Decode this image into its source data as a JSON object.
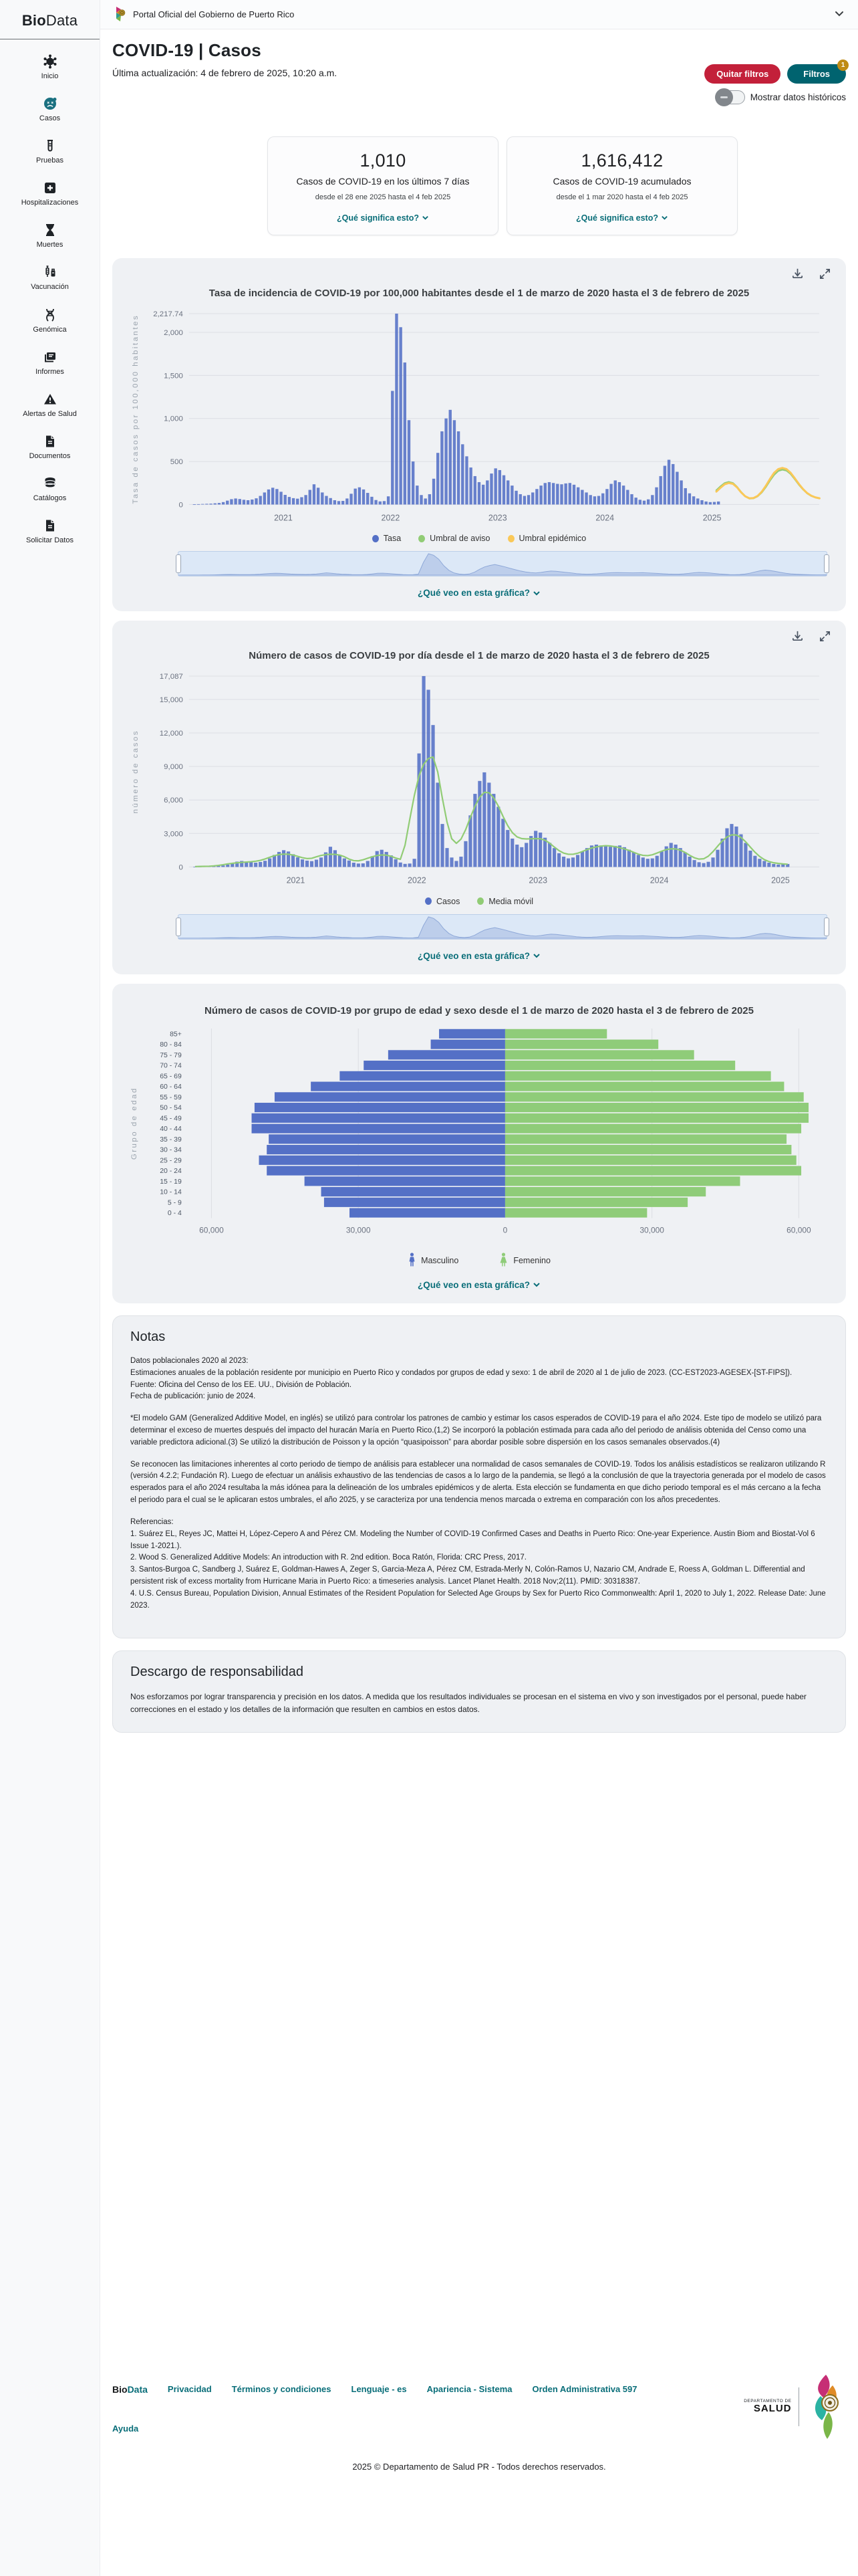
{
  "topbar": {
    "portal": "Portal Oficial del Gobierno de Puerto Rico"
  },
  "sidebar": {
    "logo_bold": "Bio",
    "logo_rest": "Data",
    "items": [
      {
        "label": "Inicio",
        "icon": "virus-icon",
        "active": false
      },
      {
        "label": "Casos",
        "icon": "sick-face-icon",
        "active": true
      },
      {
        "label": "Pruebas",
        "icon": "test-tube-icon",
        "active": false
      },
      {
        "label": "Hospitalizaciones",
        "icon": "hospital-plus-icon",
        "active": false
      },
      {
        "label": "Muertes",
        "icon": "hourglass-icon",
        "active": false
      },
      {
        "label": "Vacunación",
        "icon": "syringe-icon",
        "active": false
      },
      {
        "label": "Genómica",
        "icon": "dna-icon",
        "active": false
      },
      {
        "label": "Informes",
        "icon": "report-icon",
        "active": false
      },
      {
        "label": "Alertas de Salud",
        "icon": "warning-triangle-icon",
        "active": false
      },
      {
        "label": "Documentos",
        "icon": "document-icon",
        "active": false
      },
      {
        "label": "Catálogos",
        "icon": "database-icon",
        "active": false
      },
      {
        "label": "Solicitar Datos",
        "icon": "document-icon",
        "active": false
      }
    ]
  },
  "page": {
    "title": "COVID-19 | Casos",
    "updated": "Última actualización: 4 de febrero de 2025, 10:20 a.m."
  },
  "actions": {
    "clear_filters": "Quitar filtros",
    "filters": "Filtros",
    "filters_badge": "1",
    "toggle_label": "Mostrar datos históricos"
  },
  "stats": [
    {
      "value": "1,010",
      "label": "Casos de COVID-19 en los últimos 7 días",
      "sublabel": "desde el 28 ene 2025 hasta el 4 feb 2025",
      "link": "¿Qué significa esto?"
    },
    {
      "value": "1,616,412",
      "label": "Casos de COVID-19 acumulados",
      "sublabel": "desde el 1 mar 2020 hasta el 4 feb 2025",
      "link": "¿Qué significa esto?"
    }
  ],
  "colors": {
    "accent_teal": "#00636f",
    "link_teal": "#0a6e79",
    "red": "#c3203a",
    "badge_gold": "#bf8b14",
    "bar_blue": "#5470c6",
    "green": "#91cc75",
    "yellow": "#fac858",
    "pyramid_green": "#8fcc79"
  },
  "que_veo_link": "¿Qué veo en esta gráfica?",
  "chart_data": [
    {
      "type": "bar",
      "title": "Tasa de incidencia de COVID-19 por 100,000 habitantes desde el 1 de marzo de 2020 hasta el 3 de febrero de 2025",
      "ylabel": "Tasa de casos por 100,000 habitantes",
      "ylim": [
        0,
        2217.74
      ],
      "y_ticks": [
        {
          "v": 0,
          "l": "0"
        },
        {
          "v": 500,
          "l": "500"
        },
        {
          "v": 1000,
          "l": "1,000"
        },
        {
          "v": 1500,
          "l": "1,500"
        },
        {
          "v": 2000,
          "l": "2,000"
        },
        {
          "v": 2217.74,
          "l": "2,217.74"
        }
      ],
      "x_domain": [
        2020.12,
        2026.0
      ],
      "x_ticks": [
        {
          "v": 2021,
          "l": "2021"
        },
        {
          "v": 2022,
          "l": "2022"
        },
        {
          "v": 2023,
          "l": "2023"
        },
        {
          "v": 2024,
          "l": "2024"
        },
        {
          "v": 2025,
          "l": "2025"
        }
      ],
      "grid": true,
      "legend": [
        {
          "label": "Tasa",
          "color": "#5470c6",
          "marker": "dot"
        },
        {
          "label": "Umbral de aviso",
          "color": "#91cc75",
          "marker": "dot"
        },
        {
          "label": "Umbral epidémico",
          "color": "#fac858",
          "marker": "dot"
        }
      ],
      "legend_position": "bottom",
      "series": [
        {
          "name": "Tasa",
          "kind": "bar",
          "color": "#5470c6",
          "x_start": 2020.17,
          "x_step": 0.0385,
          "values": [
            2,
            4,
            6,
            8,
            10,
            14,
            18,
            28,
            45,
            62,
            70,
            64,
            55,
            50,
            58,
            72,
            100,
            140,
            175,
            195,
            180,
            148,
            112,
            88,
            74,
            68,
            85,
            110,
            170,
            235,
            195,
            140,
            100,
            75,
            50,
            40,
            42,
            70,
            125,
            185,
            200,
            175,
            135,
            90,
            52,
            36,
            40,
            95,
            1320,
            2217.74,
            2060,
            1650,
            980,
            500,
            220,
            110,
            70,
            120,
            300,
            600,
            850,
            1000,
            1100,
            980,
            850,
            700,
            560,
            430,
            330,
            260,
            230,
            280,
            360,
            420,
            400,
            340,
            280,
            220,
            160,
            120,
            100,
            110,
            140,
            180,
            220,
            250,
            260,
            250,
            240,
            235,
            245,
            250,
            230,
            200,
            170,
            140,
            110,
            95,
            100,
            130,
            180,
            240,
            280,
            260,
            220,
            170,
            120,
            80,
            55,
            45,
            60,
            110,
            200,
            330,
            450,
            520,
            470,
            380,
            280,
            190,
            130,
            95,
            70,
            50,
            35,
            28,
            30,
            35
          ]
        },
        {
          "name": "Umbral de aviso",
          "kind": "line",
          "color": "#91cc75",
          "width": 2.5,
          "x_start": 2025.04,
          "x_step": 0.0385,
          "values": [
            165,
            210,
            248,
            262,
            250,
            205,
            145,
            95,
            70,
            72,
            95,
            140,
            205,
            280,
            345,
            390,
            405,
            395,
            355,
            295,
            230,
            175,
            130,
            100,
            82,
            72
          ]
        },
        {
          "name": "Umbral epidémico",
          "kind": "line",
          "color": "#fac858",
          "width": 3,
          "x_start": 2025.04,
          "x_step": 0.0385,
          "values": [
            150,
            195,
            235,
            250,
            240,
            200,
            142,
            95,
            72,
            75,
            100,
            148,
            218,
            298,
            368,
            412,
            425,
            412,
            368,
            305,
            238,
            180,
            133,
            102,
            83,
            72
          ]
        }
      ]
    },
    {
      "type": "bar",
      "title": "Número de casos de COVID-19 por día desde el 1 de marzo de 2020 hasta el 3 de febrero de 2025",
      "ylabel": "número de casos",
      "ylim": [
        0,
        17087
      ],
      "y_ticks": [
        {
          "v": 0,
          "l": "0"
        },
        {
          "v": 3000,
          "l": "3,000"
        },
        {
          "v": 6000,
          "l": "6,000"
        },
        {
          "v": 9000,
          "l": "9,000"
        },
        {
          "v": 12000,
          "l": "12,000"
        },
        {
          "v": 15000,
          "l": "15,000"
        },
        {
          "v": 17087,
          "l": "17,087"
        }
      ],
      "x_domain": [
        2020.12,
        2025.32
      ],
      "x_ticks": [
        {
          "v": 2021,
          "l": "2021"
        },
        {
          "v": 2022,
          "l": "2022"
        },
        {
          "v": 2023,
          "l": "2023"
        },
        {
          "v": 2024,
          "l": "2024"
        },
        {
          "v": 2025,
          "l": "2025"
        }
      ],
      "grid": true,
      "legend": [
        {
          "label": "Casos",
          "color": "#5470c6",
          "marker": "dot"
        },
        {
          "label": "Media móvil",
          "color": "#91cc75",
          "marker": "dot"
        }
      ],
      "legend_position": "bottom",
      "moving_average": {
        "name": "Media móvil",
        "color": "#91cc75",
        "window": 7
      },
      "series": [
        {
          "name": "Casos",
          "kind": "bar",
          "color": "#5470c6",
          "x_start": 2020.17,
          "x_step": 0.0385,
          "values": [
            15,
            31,
            46,
            62,
            77,
            108,
            139,
            216,
            347,
            477,
            539,
            493,
            424,
            385,
            447,
            554,
            770,
            1078,
            1348,
            1502,
            1386,
            1140,
            862,
            678,
            570,
            524,
            655,
            847,
            1309,
            1810,
            1502,
            1078,
            770,
            578,
            385,
            308,
            323,
            539,
            963,
            1425,
            1540,
            1348,
            1040,
            693,
            400,
            277,
            308,
            732,
            10164,
            17087,
            15862,
            12705,
            7546,
            3850,
            1694,
            847,
            539,
            924,
            2310,
            4620,
            6545,
            7700,
            8470,
            7546,
            6545,
            5390,
            4312,
            3311,
            2541,
            2002,
            1771,
            2156,
            2772,
            3234,
            3080,
            2618,
            2156,
            1694,
            1232,
            924,
            770,
            847,
            1078,
            1386,
            1694,
            1925,
            2002,
            1925,
            1848,
            1810,
            1887,
            1925,
            1771,
            1540,
            1309,
            1078,
            847,
            732,
            770,
            1001,
            1386,
            1848,
            2156,
            2002,
            1694,
            1309,
            924,
            616,
            424,
            347,
            462,
            847,
            1540,
            2541,
            3465,
            3850,
            3619,
            2926,
            2156,
            1463,
            1001,
            732,
            539,
            385,
            270,
            216,
            231,
            270
          ]
        }
      ]
    },
    {
      "type": "bar",
      "subtype": "population-pyramid",
      "title": "Número de casos de COVID-19 por grupo de edad y sexo desde el 1 de marzo de 2020 hasta el 3 de febrero de 2025",
      "ylabel": "Grupo de edad",
      "categories": [
        "85+",
        "80 - 84",
        "75 - 79",
        "70 - 74",
        "65 - 69",
        "60 - 64",
        "55 - 59",
        "50 - 54",
        "45 - 49",
        "40 - 44",
        "35 - 39",
        "30 - 34",
        "25 - 29",
        "20 - 24",
        "15 - 19",
        "10 - 14",
        "5 - 9",
        "0 - 4"
      ],
      "xlim": 65000,
      "x_ticks_abs": [
        {
          "v": -60000,
          "l": "60,000"
        },
        {
          "v": -30000,
          "l": "30,000"
        },
        {
          "v": 0,
          "l": "0"
        },
        {
          "v": 30000,
          "l": "30,000"
        },
        {
          "v": 60000,
          "l": "60,000"
        }
      ],
      "legend": [
        {
          "label": "Masculino",
          "color": "#5470c6",
          "marker": "person-male"
        },
        {
          "label": "Femenino",
          "color": "#8fcc79",
          "marker": "person-female"
        }
      ],
      "series": [
        {
          "name": "Masculino",
          "color": "#5470c6",
          "values": [
            13500,
            15200,
            23900,
            28900,
            33800,
            39700,
            47100,
            51200,
            51800,
            51800,
            48300,
            48700,
            50300,
            48700,
            41000,
            37600,
            37000,
            31800
          ]
        },
        {
          "name": "Femenino",
          "color": "#8fcc79",
          "values": [
            20800,
            31300,
            38600,
            47000,
            54300,
            57000,
            61000,
            62000,
            62000,
            60500,
            57500,
            58500,
            59500,
            60500,
            48000,
            41000,
            37300,
            29000
          ]
        }
      ]
    }
  ],
  "notes": {
    "title": "Notas",
    "blocks": [
      {
        "lines": [
          "Datos poblacionales 2020 al 2023:",
          "Estimaciones anuales de la población residente por municipio en Puerto Rico y condados por grupos de edad y sexo: 1 de abril de 2020 al 1 de julio de 2023. (CC-EST2023-AGESEX-[ST-FIPS]).",
          "Fuente: Oficina del Censo de los EE. UU., División de Población.",
          "Fecha de publicación: junio de 2024."
        ]
      },
      {
        "lines": [
          "*El modelo GAM (Generalized Additive Model, en inglés) se utilizó para controlar los patrones de cambio y estimar los casos esperados de COVID-19 para el año 2024. Este tipo de modelo se utilizó para determinar el exceso de muertes después del impacto del huracán María en Puerto Rico.(1,2) Se incorporó la población estimada para cada año del periodo de análisis obtenida del Censo como una variable predictora adicional.(3) Se utilizó la distribución de Poisson y la opción “quasipoisson” para abordar posible sobre dispersión en los casos semanales observados.(4)"
        ]
      },
      {
        "lines": [
          "Se reconocen las limitaciones inherentes al corto periodo de tiempo de análisis para establecer una normalidad de casos semanales de COVID-19. Todos los análisis estadísticos se realizaron utilizando R (versión 4.2.2; Fundación R). Luego de efectuar un análisis exhaustivo de las tendencias de casos a lo largo de la pandemia, se llegó a la conclusión de que la trayectoria generada por el modelo de casos esperados para el año 2024 resultaba la más idónea para la delineación de los umbrales epidémicos y de alerta. Esta elección se fundamenta en que dicho periodo temporal es el más cercano a la fecha el periodo para el cual se le aplicaran estos umbrales, el año 2025, y se caracteriza por una tendencia menos marcada o extrema en comparación con los años precedentes."
        ]
      },
      {
        "lines": [
          "Referencias:",
          "1. Suárez EL, Reyes JC, Mattei H, López-Cepero A and Pérez CM. Modeling the Number of COVID-19 Confirmed Cases and Deaths in Puerto Rico: One-year Experience. Austin Biom and Biostat-Vol 6 Issue 1-2021.).",
          "2. Wood S. Generalized Additive Models: An introduction with R. 2nd edition. Boca Ratón, Florida: CRC Press, 2017.",
          "3. Santos-Burgoa C, Sandberg J, Suárez E, Goldman-Hawes A, Zeger S, Garcia-Meza A, Pérez CM, Estrada-Merly N, Colón-Ramos U, Nazario CM, Andrade E, Roess A, Goldman L. Differential and persistent risk of excess mortality from Hurricane Maria in Puerto Rico: a timeseries analysis. Lancet Planet Health. 2018 Nov;2(11). PMID: 30318387.",
          "4. U.S. Census Bureau, Population Division, Annual Estimates of the Resident Population for Selected Age Groups by Sex for Puerto Rico Commonwealth: April 1, 2020 to July 1, 2022. Release Date: June 2023."
        ]
      }
    ]
  },
  "disclaimer": {
    "title": "Descargo de responsabilidad",
    "text": "Nos esforzamos por lograr transparencia y precisión en los datos. A medida que los resultados individuales se procesan en el sistema en vivo y son investigados por el personal, puede haber correcciones en el estado y los detalles de la información que resulten en cambios en estos datos."
  },
  "footer": {
    "biodata_bold": "Bio",
    "biodata_rest": "Data",
    "links": [
      "Privacidad",
      "Términos y condiciones",
      "Lenguaje - es",
      "Apariencia - Sistema",
      "Orden Administrativa 597"
    ],
    "ayuda": "Ayuda",
    "dept_small": "DEPARTAMENTO DE",
    "dept_big": "SALUD",
    "copyright": "2025 © Departamento de Salud PR - Todos derechos reservados."
  }
}
